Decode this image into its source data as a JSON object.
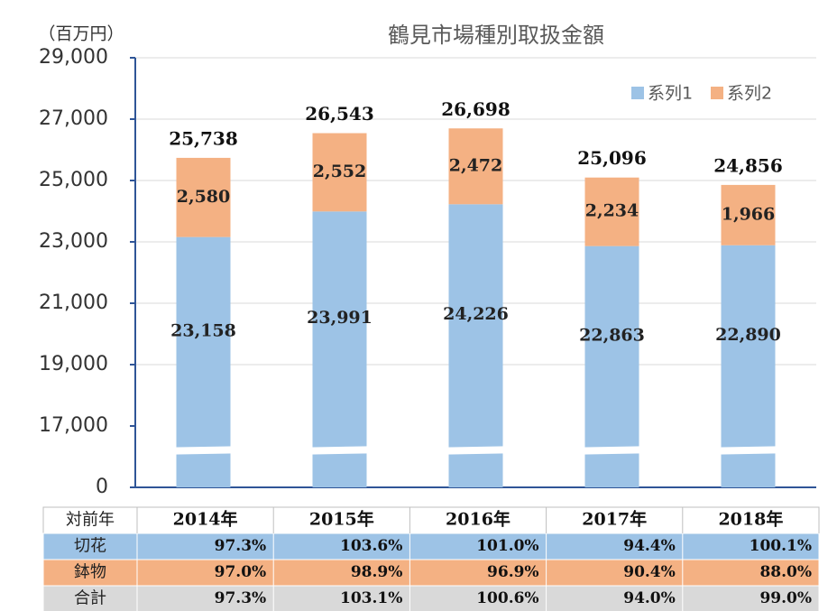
{
  "chart_data": {
    "type": "stacked_bar",
    "title": "鶴見市場種別取扱金額",
    "unit_label": "（百万円）",
    "categories": [
      "2014年",
      "2015年",
      "2016年",
      "2017年",
      "2018年"
    ],
    "series": [
      {
        "name": "系列1",
        "color": "#9dc3e6",
        "values": [
          23158,
          23991,
          24226,
          22863,
          22890
        ],
        "value_labels": [
          "23,158",
          "23,991",
          "24,226",
          "22,863",
          "22,890"
        ]
      },
      {
        "name": "系列2",
        "color": "#f4b183",
        "values": [
          2580,
          2552,
          2472,
          2234,
          1966
        ],
        "value_labels": [
          "2,580",
          "2,552",
          "2,472",
          "2,234",
          "1,966"
        ]
      }
    ],
    "totals": {
      "values": [
        25738,
        26543,
        26698,
        25096,
        24856
      ],
      "value_labels": [
        "25,738",
        "26,543",
        "26,698",
        "25,096",
        "24,856"
      ]
    },
    "ylim": [
      0,
      29000
    ],
    "axis_break": [
      0,
      17000
    ],
    "yticks": [
      0,
      {
        "value": 17000,
        "label": "17,000"
      },
      {
        "value": 19000,
        "label": "19,000"
      },
      {
        "value": 21000,
        "label": "21,000"
      },
      {
        "value": 23000,
        "label": "23,000"
      },
      {
        "value": 25000,
        "label": "25,000"
      },
      {
        "value": 27000,
        "label": "27,000"
      },
      {
        "value": 29000,
        "label": "29,000"
      }
    ],
    "grid": true,
    "legend": "top-right",
    "table": {
      "header": "対前年",
      "rows": [
        {
          "label": "切花",
          "color": "#9dc3e6",
          "cells": [
            "97.3%",
            "103.6%",
            "101.0%",
            "94.4%",
            "100.1%"
          ]
        },
        {
          "label": "鉢物",
          "color": "#f4b183",
          "cells": [
            "97.0%",
            "98.9%",
            "96.9%",
            "90.4%",
            "88.0%"
          ]
        },
        {
          "label": "合計",
          "color": "#d9d9d9",
          "cells": [
            "97.3%",
            "103.1%",
            "100.6%",
            "94.0%",
            "99.0%"
          ]
        }
      ]
    }
  }
}
